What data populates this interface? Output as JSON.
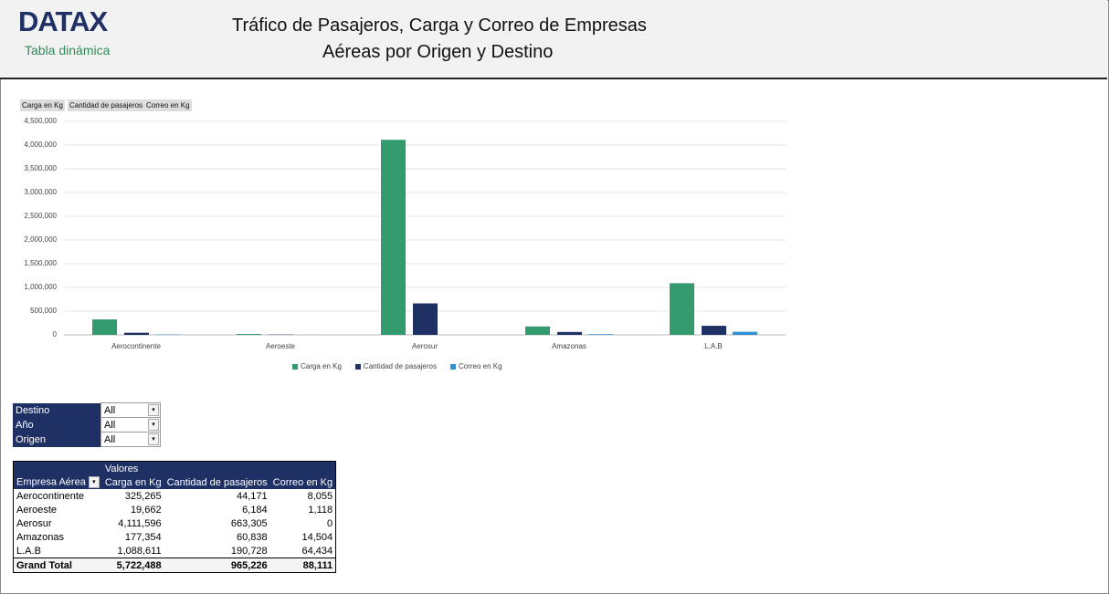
{
  "header": {
    "logo": "DATAX",
    "subtitle": "Tabla dinámica",
    "title_line1": "Tráfico de Pasajeros, Carga y Correo de Empresas",
    "title_line2": "Aéreas por Origen y Destino"
  },
  "chart_data": {
    "type": "bar",
    "categories": [
      "Aerocontinente",
      "Aeroeste",
      "Aerosur",
      "Amazonas",
      "L.A.B"
    ],
    "series": [
      {
        "name": "Carga en Kg",
        "color": "#339b6d",
        "values": [
          325265,
          19662,
          4111596,
          177354,
          1088611
        ]
      },
      {
        "name": "Cantidad de pasajeros",
        "color": "#1f3064",
        "values": [
          44171,
          6184,
          663305,
          60838,
          190728
        ]
      },
      {
        "name": "Correo en Kg",
        "color": "#2f8fd0",
        "values": [
          8055,
          1118,
          0,
          14504,
          64434
        ]
      }
    ],
    "ylim": [
      0,
      4500000
    ],
    "yticks": [
      0,
      {
        "value": 500000,
        "label": "500,000"
      },
      {
        "value": 1000000,
        "label": "1,000,000"
      },
      {
        "value": 1500000,
        "label": "1,500,000"
      },
      {
        "value": 2000000,
        "label": "2,000,000"
      },
      {
        "value": 2500000,
        "label": "2,500,000"
      },
      {
        "value": 3000000,
        "label": "3,000,000"
      },
      {
        "value": 3500000,
        "label": "3,500,000"
      },
      {
        "value": 4000000,
        "label": "4,000,000"
      },
      {
        "value": 4500000,
        "label": "4,500,000"
      }
    ],
    "grid": true,
    "legend": "bottom"
  },
  "filters": [
    [
      "Destino",
      "All"
    ],
    [
      "Año",
      "All"
    ],
    [
      "Origen",
      "All"
    ]
  ],
  "pivot": {
    "values_header": "Valores",
    "columns": [
      "Empresa Aérea",
      "Carga en Kg",
      "Cantidad de pasajeros",
      "Correo en Kg"
    ],
    "rows": [
      [
        "Aerocontinente",
        "325,265",
        "44,171",
        "8,055"
      ],
      [
        "Aeroeste",
        "19,662",
        "6,184",
        "1,118"
      ],
      [
        "Aerosur",
        "4,111,596",
        "663,305",
        "0"
      ],
      [
        "Amazonas",
        "177,354",
        "60,838",
        "14,504"
      ],
      [
        "L.A.B",
        "1,088,611",
        "190,728",
        "64,434"
      ]
    ],
    "total": [
      "Grand Total",
      "5,722,488",
      "965,226",
      "88,111"
    ]
  }
}
